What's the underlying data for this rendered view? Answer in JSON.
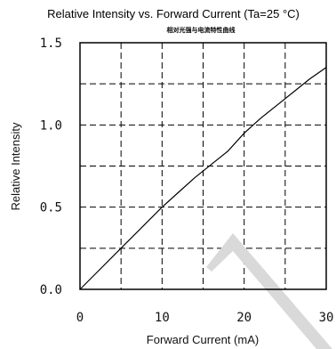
{
  "chart_data": {
    "type": "line",
    "title": "Relative Intensity vs. Forward Current (Ta=25 °C)",
    "subtitle": "相对光强与电流特性曲线",
    "xlabel": "Forward Current (mA)",
    "ylabel": "Relative Intensity",
    "xlim": [
      0,
      30
    ],
    "ylim": [
      0,
      1.5
    ],
    "x_ticks": [
      "0",
      "10",
      "20",
      "30"
    ],
    "y_ticks": [
      "0.0",
      "0.5",
      "1.0",
      "1.5"
    ],
    "grid": true,
    "series": [
      {
        "x": [
          0,
          2,
          4,
          6,
          8,
          10,
          12,
          14,
          16,
          18,
          20,
          22,
          24,
          26,
          28,
          30
        ],
        "y": [
          0,
          0.1,
          0.2,
          0.3,
          0.4,
          0.5,
          0.59,
          0.68,
          0.76,
          0.84,
          0.95,
          1.04,
          1.12,
          1.2,
          1.28,
          1.35
        ]
      }
    ],
    "colors": {
      "line": "#000000",
      "grid": "#000000",
      "watermark": "#d9d9d9"
    }
  }
}
